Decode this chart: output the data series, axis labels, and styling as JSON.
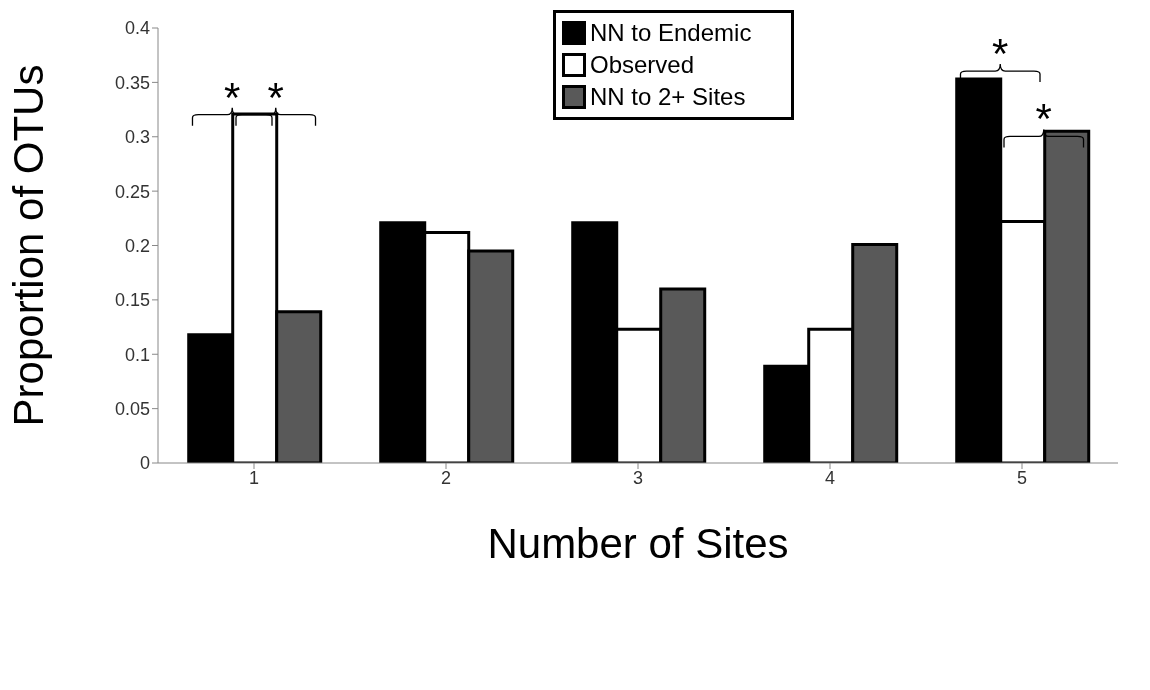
{
  "chart_data": {
    "type": "bar",
    "xlabel": "Number of Sites",
    "ylabel": "Proportion of OTUs",
    "categories": [
      "1",
      "2",
      "3",
      "4",
      "5"
    ],
    "series": [
      {
        "name": "NN to Endemic",
        "color": "#000000",
        "values": [
          0.118,
          0.221,
          0.221,
          0.089,
          0.353
        ]
      },
      {
        "name": "Observed",
        "color": "#ffffff",
        "values": [
          0.321,
          0.212,
          0.123,
          0.123,
          0.222
        ]
      },
      {
        "name": "NN to 2+ Sites",
        "color": "#595959",
        "values": [
          0.139,
          0.195,
          0.16,
          0.201,
          0.305
        ]
      }
    ],
    "ylim": [
      0,
      0.4
    ],
    "yticks": [
      0,
      0.05,
      0.1,
      0.15,
      0.2,
      0.25,
      0.3,
      0.35,
      0.4
    ],
    "grid": false,
    "legend": "top right",
    "annotations": [
      "*",
      "*",
      "*",
      "*"
    ]
  }
}
